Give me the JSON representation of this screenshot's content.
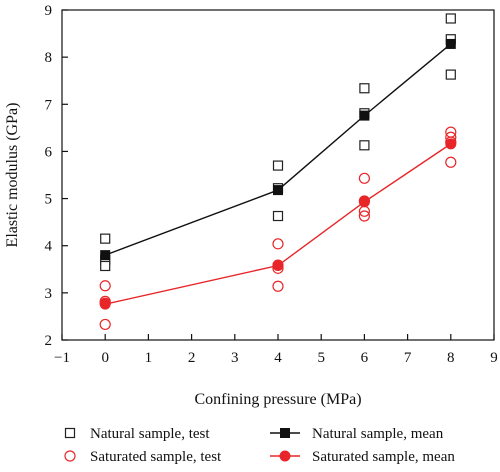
{
  "chart_data": {
    "type": "scatter",
    "title": "",
    "xlabel": "Confining pressure (MPa)",
    "ylabel": "Elastic modulus (GPa)",
    "xlim": [
      -1,
      9
    ],
    "ylim": [
      2,
      9
    ],
    "xticks": [
      -1,
      0,
      1,
      2,
      3,
      4,
      5,
      6,
      7,
      8,
      9
    ],
    "yticks": [
      2,
      3,
      4,
      5,
      6,
      7,
      8,
      9
    ],
    "xtick_labels": [
      "−1",
      "0",
      "1",
      "2",
      "3",
      "4",
      "5",
      "6",
      "7",
      "8",
      "9"
    ],
    "ytick_labels": [
      "2",
      "3",
      "4",
      "5",
      "6",
      "7",
      "8",
      "9"
    ],
    "grid": false,
    "legend_position": "bottom",
    "series": [
      {
        "name": "Natural sample, test",
        "kind": "scatter",
        "marker": "square-open",
        "color": "#222222",
        "points": [
          [
            0,
            4.15
          ],
          [
            0,
            3.7
          ],
          [
            0,
            3.57
          ],
          [
            4,
            5.7
          ],
          [
            4,
            5.22
          ],
          [
            4,
            4.63
          ],
          [
            6,
            7.34
          ],
          [
            6,
            6.81
          ],
          [
            6,
            6.13
          ],
          [
            8,
            8.82
          ],
          [
            8,
            8.38
          ],
          [
            8,
            7.63
          ]
        ]
      },
      {
        "name": "Saturated sample, test",
        "kind": "scatter",
        "marker": "circle-open",
        "color": "#e8262a",
        "points": [
          [
            0,
            3.15
          ],
          [
            0,
            2.82
          ],
          [
            0,
            2.78
          ],
          [
            0,
            2.33
          ],
          [
            4,
            4.04
          ],
          [
            4,
            3.59
          ],
          [
            4,
            3.52
          ],
          [
            4,
            3.14
          ],
          [
            6,
            5.43
          ],
          [
            6,
            4.95
          ],
          [
            6,
            4.73
          ],
          [
            6,
            4.63
          ],
          [
            8,
            6.41
          ],
          [
            8,
            6.3
          ],
          [
            8,
            6.2
          ],
          [
            8,
            5.77
          ]
        ]
      },
      {
        "name": "Natural sample, mean",
        "kind": "line",
        "marker": "square-filled",
        "color": "#111111",
        "points": [
          [
            0,
            3.8
          ],
          [
            4,
            5.18
          ],
          [
            6,
            6.76
          ],
          [
            8,
            8.28
          ]
        ]
      },
      {
        "name": "Saturated sample, mean",
        "kind": "line",
        "marker": "circle-filled",
        "color": "#e8262a",
        "points": [
          [
            0,
            2.76
          ],
          [
            4,
            3.58
          ],
          [
            6,
            4.93
          ],
          [
            8,
            6.16
          ]
        ]
      }
    ]
  }
}
